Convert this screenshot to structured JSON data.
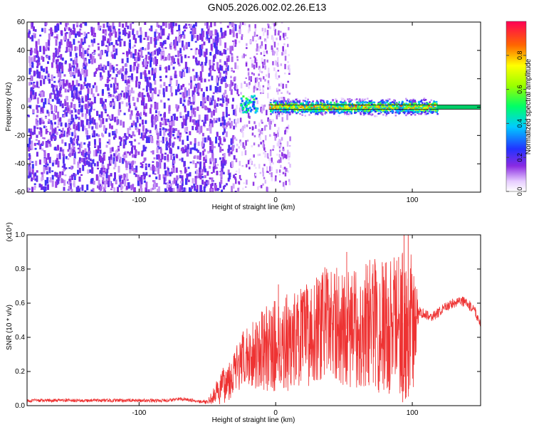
{
  "title": "GN05.2026.002.02.26.E13",
  "chart_data": [
    {
      "type": "heatmap",
      "name": "spectrogram",
      "xlabel": "Height of straight line (km)",
      "ylabel": "Frequency (Hz)",
      "xlim": [
        -182,
        150
      ],
      "ylim": [
        -60,
        60
      ],
      "x_ticks": [
        -100,
        0,
        100
      ],
      "y_ticks": [
        -60,
        -40,
        -20,
        0,
        20,
        40,
        60
      ],
      "colorbar": {
        "label": "Normalized spectral amplitude",
        "range": [
          0,
          1
        ],
        "ticks": [
          0.0,
          0.2,
          0.4,
          0.6,
          0.8
        ]
      },
      "regions": [
        {
          "kind": "broadband_noise",
          "x_range": [
            -182,
            -30
          ],
          "freq_range": [
            -60,
            60
          ],
          "amplitude": 0.15
        },
        {
          "kind": "sparse_noise",
          "x_range": [
            -30,
            10
          ],
          "freq_range": [
            -60,
            60
          ],
          "amplitude": 0.08
        },
        {
          "kind": "blob",
          "x_center": -20,
          "freq_center": 2,
          "amplitude": 0.4
        },
        {
          "kind": "narrow_band",
          "x_range": [
            -5,
            118
          ],
          "freq_center": 0,
          "half_width_hz": 7,
          "peak_amplitude": 0.9
        },
        {
          "kind": "carrier_line",
          "x_range": [
            118,
            150
          ],
          "freq_center": 0,
          "amplitude": 0.6
        }
      ]
    },
    {
      "type": "line",
      "name": "snr",
      "xlabel": "Height of straight line (km)",
      "ylabel": "SNR (10 * v/v)",
      "y_multiplier": "(x10⁴)",
      "xlim": [
        -182,
        150
      ],
      "ylim": [
        0,
        1.0
      ],
      "x_ticks": [
        -100,
        0,
        100
      ],
      "y_ticks": [
        0.0,
        0.2,
        0.4,
        0.6,
        0.8,
        1.0
      ],
      "color": "#ee3333",
      "envelope_x": [
        -182,
        -80,
        -70,
        -50,
        -40,
        -20,
        0,
        20,
        30,
        40,
        50,
        60,
        70,
        80,
        90,
        100,
        105,
        115,
        125,
        135,
        145,
        150
      ],
      "envelope_y": [
        0.03,
        0.03,
        0.04,
        0.02,
        0.1,
        0.3,
        0.35,
        0.4,
        0.45,
        0.5,
        0.45,
        0.45,
        0.5,
        0.45,
        0.5,
        0.45,
        0.55,
        0.52,
        0.58,
        0.62,
        0.57,
        0.48
      ],
      "noise_amp_x": [
        -182,
        -50,
        -40,
        0,
        20,
        60,
        80,
        100,
        105,
        150
      ],
      "noise_amp_y": [
        0.01,
        0.01,
        0.1,
        0.28,
        0.3,
        0.35,
        0.42,
        0.45,
        0.03,
        0.03
      ],
      "spikes": [
        {
          "x": 2,
          "y": 0.71
        },
        {
          "x": 30,
          "y": 0.74
        },
        {
          "x": 36,
          "y": 0.81
        },
        {
          "x": 52,
          "y": 0.9
        },
        {
          "x": 78,
          "y": 0.84
        },
        {
          "x": 90,
          "y": 0.87
        },
        {
          "x": 94,
          "y": 1.0
        },
        {
          "x": 97,
          "y": 1.0
        },
        {
          "x": 83,
          "y": 0.07
        },
        {
          "x": 95,
          "y": 0.04
        },
        {
          "x": 93,
          "y": 0.02
        }
      ]
    }
  ]
}
